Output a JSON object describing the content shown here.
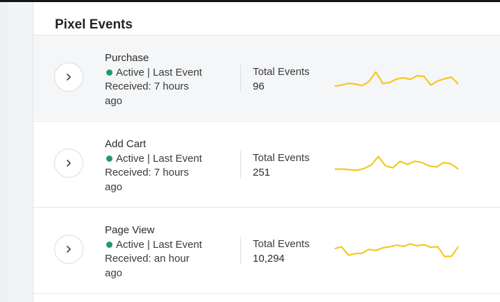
{
  "panel": {
    "title": "Pixel Events"
  },
  "theme": {
    "status_active": "#1f9a6a",
    "sparkline": "#f4c81f"
  },
  "events": [
    {
      "name": "Purchase",
      "status": "Active | Last Event",
      "received": "Received: 7 hours",
      "received_tail": "ago",
      "total_label": "Total Events",
      "total": "96",
      "trend": [
        0.18,
        0.22,
        0.29,
        0.26,
        0.2,
        0.36,
        0.72,
        0.28,
        0.32,
        0.45,
        0.5,
        0.44,
        0.58,
        0.55,
        0.22,
        0.38,
        0.46,
        0.52,
        0.26
      ]
    },
    {
      "name": "Add Cart",
      "status": "Active | Last Event",
      "received": "Received: 7 hours",
      "received_tail": "ago",
      "total_label": "Total Events",
      "total": "251",
      "trend": [
        0.3,
        0.3,
        0.28,
        0.25,
        0.32,
        0.45,
        0.78,
        0.42,
        0.35,
        0.6,
        0.48,
        0.6,
        0.55,
        0.42,
        0.38,
        0.55,
        0.5,
        0.3
      ]
    },
    {
      "name": "Page View",
      "status": "Active | Last Event",
      "received": "Received: an hour",
      "received_tail": "ago",
      "total_label": "Total Events",
      "total": "10,294",
      "trend": [
        0.55,
        0.62,
        0.3,
        0.36,
        0.38,
        0.52,
        0.48,
        0.58,
        0.62,
        0.68,
        0.64,
        0.72,
        0.66,
        0.7,
        0.6,
        0.62,
        0.25,
        0.26,
        0.62
      ]
    }
  ]
}
